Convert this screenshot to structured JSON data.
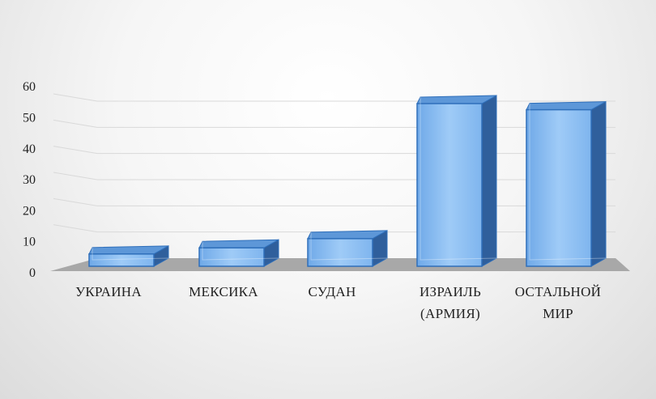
{
  "chart_data": {
    "type": "bar",
    "style": "3d-column",
    "categories": [
      [
        "УКРАИНА"
      ],
      [
        "МЕКСИКА"
      ],
      [
        "СУДАН"
      ],
      [
        "ИЗРАИЛЬ",
        "(АРМИЯ)"
      ],
      [
        "ОСТАЛЬНОЙ",
        "МИР"
      ]
    ],
    "values": [
      4,
      6,
      9,
      53,
      51
    ],
    "yticks": [
      "0",
      "10",
      "20",
      "30",
      "40",
      "50",
      "60"
    ],
    "ylim": [
      0,
      60
    ],
    "title": "",
    "xlabel": "",
    "ylabel": "",
    "grid": true,
    "legend": "none",
    "colors": {
      "bar_front": "#7fb5ee",
      "bar_top": "#5d97d8",
      "bar_side": "#2f5f9c",
      "bar_edge": "#2f6fba",
      "floor": "#a8a8a8",
      "grid": "#d9d9d9"
    }
  }
}
